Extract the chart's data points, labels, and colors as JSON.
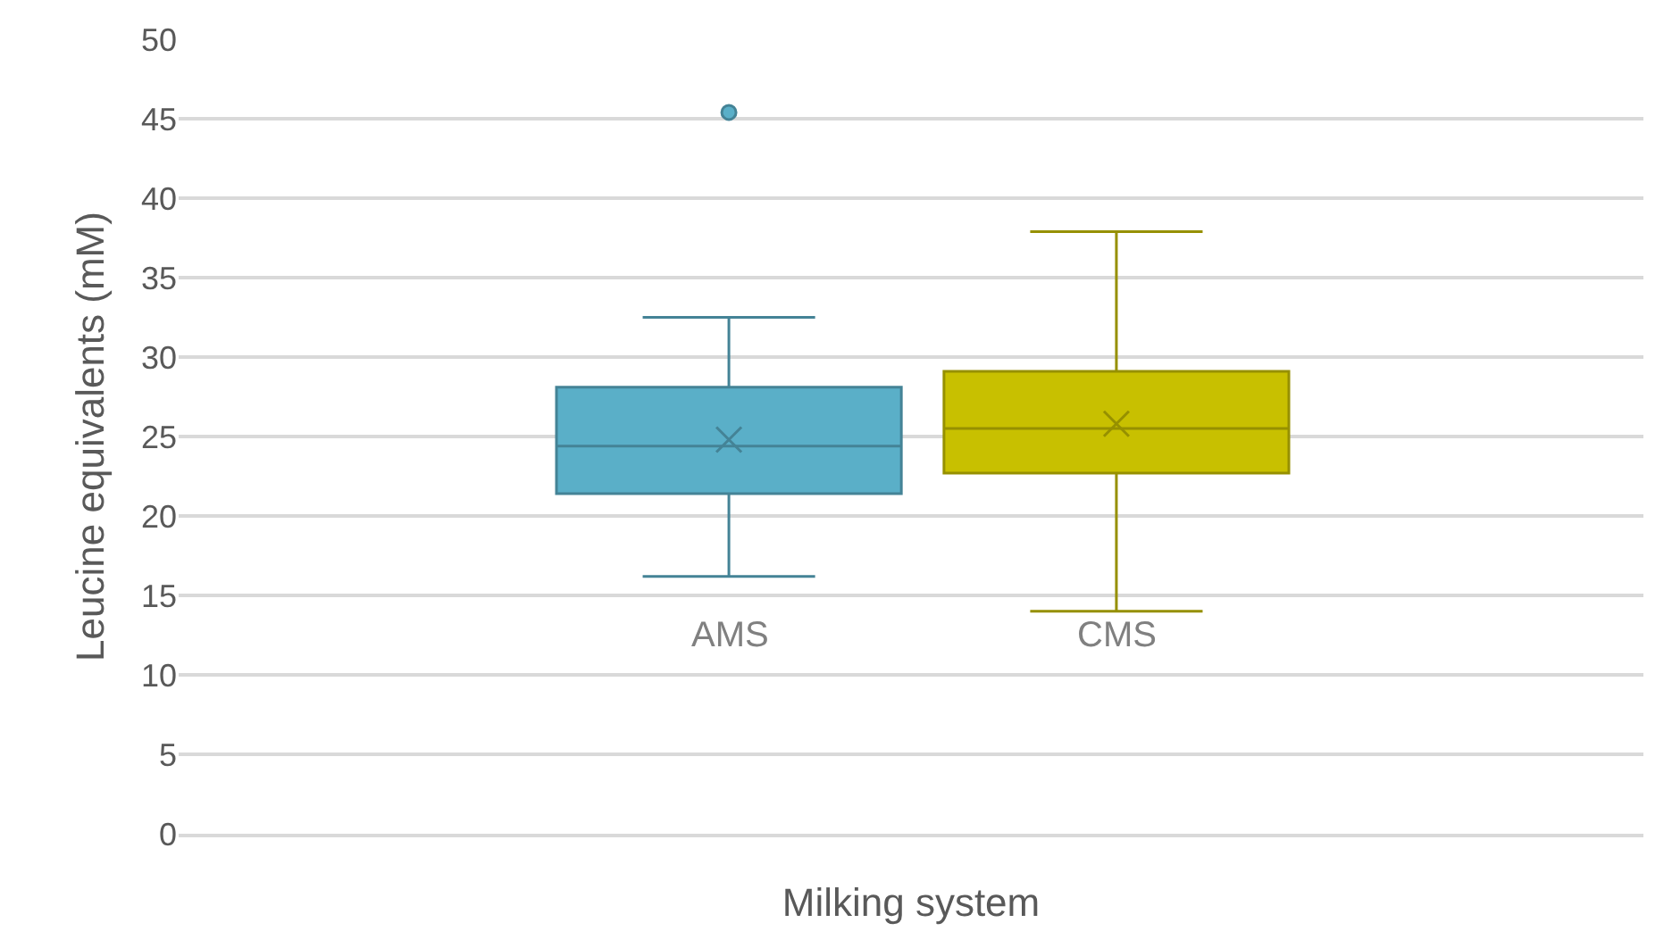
{
  "chart_data": {
    "type": "box",
    "xlabel": "Milking system",
    "ylabel": "Leucine equivalents (mM)",
    "categories": [
      "AMS",
      "CMS"
    ],
    "colors": [
      "#5aafc8",
      "#c8c000"
    ],
    "boxes": [
      {
        "low": 16.2,
        "q1": 21.4,
        "median": 24.4,
        "q3": 28.1,
        "high": 32.5,
        "mean": 24.8,
        "outliers": [
          45.4
        ]
      },
      {
        "low": 14.0,
        "q1": 22.7,
        "median": 25.5,
        "q3": 29.1,
        "high": 37.9,
        "mean": 25.8
      }
    ],
    "ylim": [
      0,
      50
    ],
    "yticks": [
      0,
      5,
      10,
      15,
      20,
      25,
      30,
      35,
      40,
      45,
      50
    ],
    "grid": "y"
  }
}
